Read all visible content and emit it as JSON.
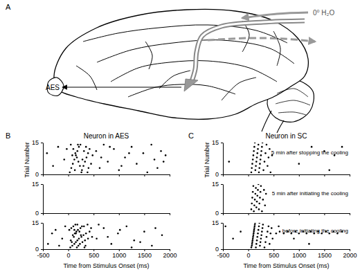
{
  "figure": {
    "panel_labels": [
      "A",
      "B",
      "C"
    ],
    "diagram": {
      "probe_label": "0⁰ H₂O",
      "region_label": "AES"
    }
  },
  "chart_data": [
    {
      "type": "scatter",
      "title": "Neuron in AES",
      "y_label": "Trial Number",
      "marker": "dot",
      "tick_labels": "y",
      "x": [
        -420,
        -300,
        -200,
        -80,
        -30,
        30,
        60,
        90,
        120,
        150,
        180,
        210,
        240,
        270,
        300,
        330,
        360,
        390,
        420,
        50,
        100,
        140,
        170,
        200,
        230,
        260,
        310,
        350,
        400,
        450,
        80,
        130,
        190,
        280,
        380,
        480,
        550,
        620,
        700,
        780,
        900,
        1000,
        1120,
        1250,
        1350,
        1480,
        1560,
        1640,
        1700,
        1760,
        1830,
        1880,
        1920,
        650,
        820,
        1050,
        1200
      ],
      "series": [
        {
          "color": "#000000",
          "values": [
            10,
            4,
            13,
            7,
            12,
            1,
            3,
            5,
            7,
            9,
            11,
            13,
            14,
            2,
            4,
            6,
            8,
            10,
            12,
            14,
            12,
            10,
            8,
            6,
            4,
            1,
            11,
            13,
            3,
            5,
            9,
            2,
            14,
            7,
            1,
            9,
            11,
            3,
            14,
            6,
            12,
            2,
            8,
            13,
            5,
            10,
            1,
            14,
            7,
            3,
            11,
            6,
            9,
            8,
            13,
            4,
            10
          ]
        }
      ],
      "xlim": [
        -500,
        2000
      ],
      "xticks": [
        -500,
        0,
        500,
        1000,
        1500,
        2000
      ],
      "ylim": [
        0,
        15
      ],
      "yticks": [
        0,
        15
      ]
    },
    {
      "type": "scatter",
      "marker": "dot",
      "tick_labels": "y",
      "x": [],
      "series": [
        {
          "color": "#000000",
          "values": []
        }
      ],
      "xlim": [
        -500,
        2000
      ],
      "xticks": [
        -500,
        0,
        500,
        1000,
        1500,
        2000
      ],
      "ylim": [
        0,
        15
      ],
      "yticks": [
        0,
        15
      ]
    },
    {
      "type": "scatter",
      "x_label": "Time from Stimulus Onset (ms)",
      "marker": "dot",
      "x": [
        -400,
        -250,
        -120,
        -60,
        40,
        80,
        120,
        150,
        180,
        210,
        260,
        300,
        350,
        420,
        20,
        60,
        100,
        140,
        170,
        200,
        230,
        280,
        330,
        390,
        470,
        90,
        130,
        160,
        190,
        240,
        310,
        380,
        50,
        110,
        150,
        220,
        270,
        340,
        450,
        70,
        120,
        180,
        250,
        320,
        560,
        700,
        850,
        980,
        1150,
        1300,
        1500,
        1650,
        1850,
        600,
        780,
        1020,
        1250,
        1420,
        1720,
        -320,
        -180
      ],
      "series": [
        {
          "color": "#000000",
          "values": [
            3,
            11,
            6,
            13,
            1,
            2,
            3,
            4,
            5,
            6,
            7,
            8,
            9,
            10,
            11,
            12,
            13,
            14,
            1,
            2,
            3,
            4,
            5,
            6,
            7,
            8,
            9,
            10,
            11,
            12,
            13,
            14,
            5,
            7,
            9,
            10,
            13,
            2,
            12,
            4,
            11,
            14,
            8,
            1,
            6,
            12,
            3,
            9,
            13,
            5,
            10,
            2,
            8,
            14,
            7,
            11,
            1,
            4,
            12,
            9,
            2
          ]
        }
      ],
      "xlim": [
        -500,
        2000
      ],
      "xticks": [
        -500,
        0,
        500,
        1000,
        1500,
        2000
      ],
      "ylim": [
        0,
        15
      ],
      "yticks": [
        0,
        15
      ]
    },
    {
      "type": "scatter",
      "title": "Neuron in SC",
      "y_label": "Trial Number",
      "annotation": "5 min after stopping the cooling",
      "marker": "dot",
      "tick_labels": "y",
      "x": [
        -380,
        60,
        70,
        80,
        90,
        100,
        110,
        120,
        130,
        140,
        150,
        160,
        170,
        180,
        190,
        200,
        210,
        220,
        230,
        240,
        250,
        260,
        270,
        280,
        300,
        320,
        340,
        360,
        380,
        400,
        420,
        440,
        470,
        1000,
        1250,
        1500,
        1700,
        1850,
        1600
      ],
      "series": [
        {
          "color": "#000000",
          "values": [
            6,
            1,
            3,
            5,
            7,
            9,
            11,
            13,
            15,
            2,
            4,
            6,
            8,
            10,
            12,
            14,
            1,
            3,
            5,
            7,
            9,
            11,
            13,
            15,
            2,
            6,
            10,
            14,
            4,
            8,
            12,
            1,
            9,
            5,
            13,
            11,
            9,
            13,
            2
          ]
        }
      ],
      "xlim": [
        -500,
        2000
      ],
      "xticks": [
        -500,
        0,
        500,
        1000,
        1500,
        2000
      ],
      "ylim": [
        0,
        15
      ],
      "yticks": [
        0,
        15
      ]
    },
    {
      "type": "scatter",
      "annotation": "5 min after initiating the cooling",
      "marker": "dot",
      "tick_labels": "y",
      "x": [
        60,
        70,
        80,
        90,
        100,
        110,
        120,
        130,
        140,
        150,
        160,
        170,
        180,
        190,
        200,
        210,
        220,
        230,
        240,
        250,
        270,
        290,
        310,
        330,
        350
      ],
      "series": [
        {
          "color": "#000000",
          "values": [
            2,
            5,
            8,
            11,
            14,
            1,
            4,
            7,
            10,
            13,
            3,
            6,
            9,
            12,
            15,
            2,
            5,
            8,
            11,
            14,
            1,
            7,
            12,
            4,
            10
          ]
        }
      ],
      "xlim": [
        -500,
        2000
      ],
      "xticks": [
        -500,
        0,
        500,
        1000,
        1500,
        2000
      ],
      "ylim": [
        0,
        15
      ],
      "yticks": [
        0,
        15
      ]
    },
    {
      "type": "scatter",
      "x_label": "Time from Stimulus Onset (ms)",
      "annotation": "before initiating the cooling",
      "marker": "dot",
      "x": [
        -450,
        -300,
        -150,
        60,
        70,
        75,
        80,
        85,
        90,
        95,
        100,
        105,
        110,
        115,
        120,
        125,
        130,
        135,
        150,
        160,
        170,
        180,
        190,
        200,
        210,
        220,
        230,
        240,
        250,
        260,
        270,
        280,
        290,
        320,
        340,
        360,
        380,
        400,
        420,
        440,
        460,
        480,
        550,
        620,
        700,
        780,
        850,
        930,
        1000,
        1080,
        1150,
        1230,
        1300,
        1380,
        1450,
        1530,
        1600,
        1680,
        1760,
        1850,
        600,
        900,
        1200
      ],
      "series": [
        {
          "color": "#000000",
          "values": [
            13,
            6,
            10,
            1,
            2,
            3,
            4,
            5,
            6,
            7,
            8,
            9,
            10,
            11,
            12,
            13,
            14,
            15,
            1,
            3,
            5,
            7,
            9,
            11,
            13,
            15,
            2,
            4,
            6,
            8,
            10,
            12,
            14,
            1,
            4,
            7,
            10,
            13,
            3,
            9,
            12,
            6,
            9,
            10,
            9,
            10,
            9,
            10,
            9,
            10,
            9,
            10,
            9,
            10,
            9,
            10,
            9,
            10,
            9,
            10,
            13,
            6,
            3
          ]
        }
      ],
      "xlim": [
        -500,
        2000
      ],
      "xticks": [
        -500,
        0,
        500,
        1000,
        1500,
        2000
      ],
      "ylim": [
        0,
        15
      ],
      "yticks": [
        0,
        15
      ]
    }
  ]
}
